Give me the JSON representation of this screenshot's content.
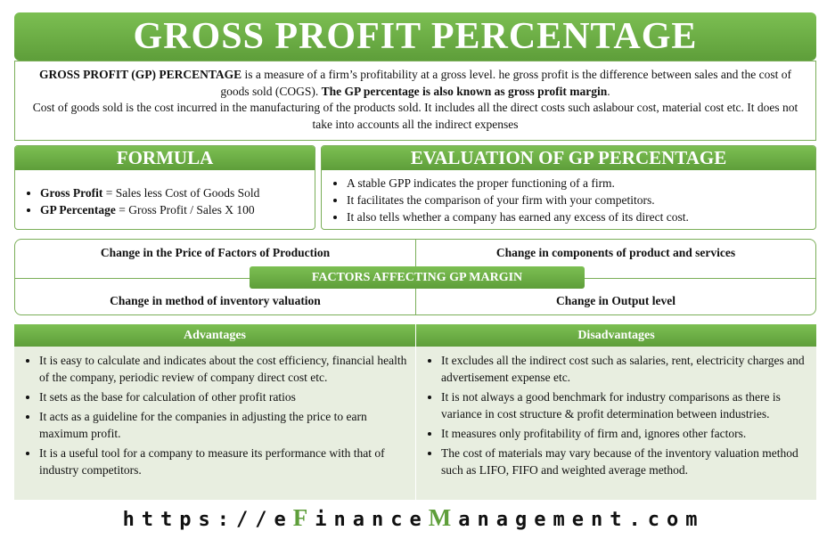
{
  "title": "GROSS PROFIT PERCENTAGE",
  "intro": {
    "paragraphs": [
      [
        {
          "text": "GROSS PROFIT (GP) PERCENTAGE",
          "bold": true
        },
        {
          "text": " is a measure of a firm’s profitability at a gross level. he gross profit is the difference between sales and the cost of goods sold (COGS). ",
          "bold": false
        },
        {
          "text": "The GP percentage is also known as gross profit margin",
          "bold": true
        },
        {
          "text": ".",
          "bold": false
        }
      ],
      [
        {
          "text": "Cost of goods sold is the cost incurred in the manufacturing of the products sold. It includes all the direct costs such aslabour cost, material cost etc. It does not take into accounts all the indirect expenses",
          "bold": false
        }
      ]
    ]
  },
  "formula": {
    "heading": "FORMULA",
    "items": [
      {
        "term": "Gross Profit",
        "text": " = Sales less Cost of Goods Sold"
      },
      {
        "term": "GP Percentage",
        "text": " = Gross Profit / Sales X 100"
      }
    ]
  },
  "evaluation": {
    "heading": "EVALUATION OF GP PERCENTAGE",
    "items": [
      "A stable GPP indicates the proper functioning of a firm.",
      "It facilitates the comparison of your firm with your competitors.",
      "It also tells whether a company has earned any excess of its direct cost."
    ]
  },
  "factors": {
    "heading": "FACTORS AFFECTING GP MARGIN",
    "items": [
      "Change in the Price of Factors of Production",
      "Change in components of product and services",
      "Change in method of inventory valuation",
      "Change in Output level"
    ]
  },
  "advantages": {
    "heading": "Advantages",
    "items": [
      "It is easy to calculate and indicates about the cost efficiency, financial health of the company, periodic review of company direct cost etc.",
      "It sets as the base for calculation of other profit ratios",
      "It acts as a guideline for the companies in adjusting the price to earn maximum profit.",
      "It is a useful tool for a company to measure its performance with that of industry competitors."
    ]
  },
  "disadvantages": {
    "heading": "Disadvantages",
    "items": [
      "It excludes all the indirect cost such as salaries, rent, electricity charges and advertisement expense etc.",
      "It is not always a good benchmark for industry comparisons as there is variance in cost structure & profit determination between industries.",
      "It measures only profitability of firm and, ignores other factors.",
      "The cost of materials may vary because of the inventory valuation method such as LIFO, FIFO and weighted average method."
    ]
  },
  "footer": {
    "runs": [
      {
        "text": "https://e",
        "highlight": false
      },
      {
        "text": "F",
        "highlight": true
      },
      {
        "text": "inance",
        "highlight": false
      },
      {
        "text": "M",
        "highlight": true
      },
      {
        "text": "anagement.com",
        "highlight": false
      }
    ]
  }
}
